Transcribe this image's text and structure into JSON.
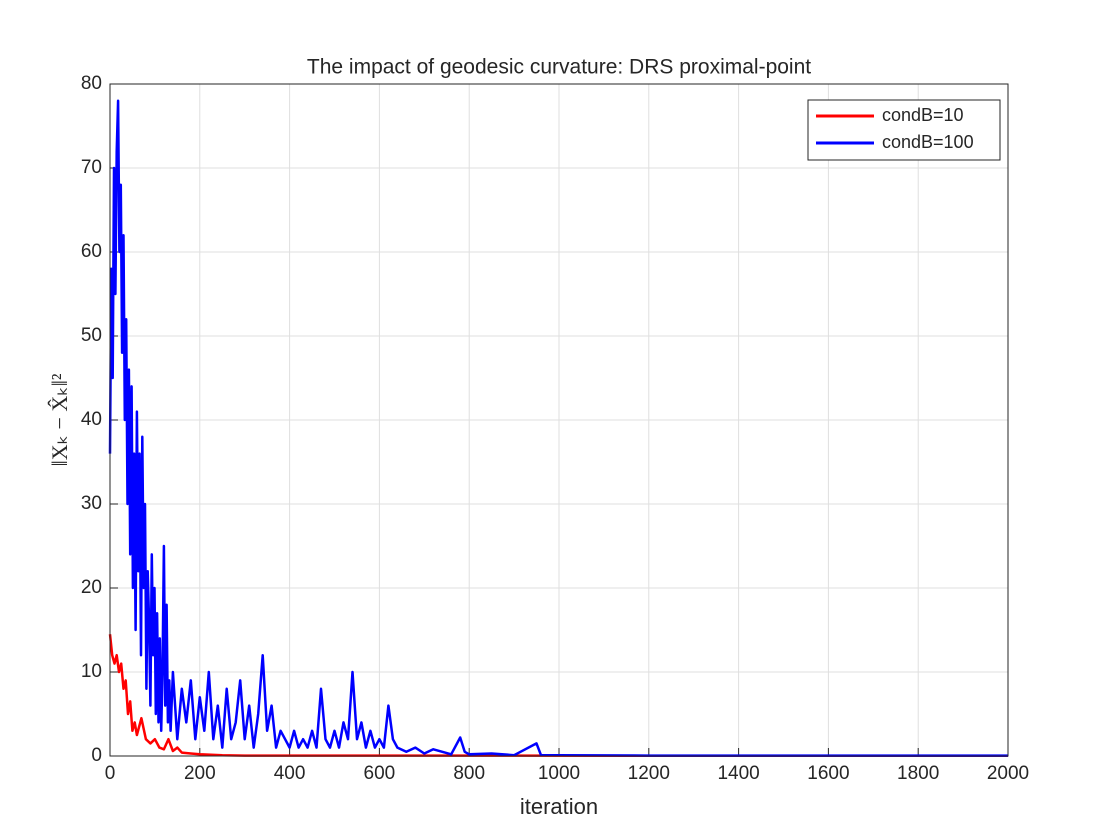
{
  "chart_data": {
    "type": "line",
    "title": "The impact of geodesic curvature: DRS proximal-point",
    "x_label": "iteration",
    "y_label": "‖Xₖ − X̂ₖ‖²",
    "xlim": [
      0,
      2000
    ],
    "xticks": [
      0,
      200,
      400,
      600,
      800,
      1000,
      1200,
      1400,
      1600,
      1800,
      2000
    ],
    "ylim": [
      0,
      80
    ],
    "yticks": [
      0,
      10,
      20,
      30,
      40,
      50,
      60,
      70,
      80
    ],
    "grid": true,
    "legend_position": "top-right",
    "series": [
      {
        "name": "condB=10",
        "color": "#ff0000",
        "x": [
          0,
          5,
          10,
          15,
          20,
          25,
          30,
          35,
          40,
          45,
          50,
          55,
          60,
          70,
          80,
          90,
          100,
          110,
          120,
          130,
          140,
          150,
          160,
          180,
          200,
          250,
          300,
          2000
        ],
        "values": [
          14.5,
          12,
          11,
          12,
          10,
          11,
          8,
          9,
          5,
          6.5,
          3,
          4,
          2.5,
          4.5,
          2,
          1.5,
          2,
          1,
          0.8,
          2,
          0.6,
          1,
          0.4,
          0.3,
          0.2,
          0.1,
          0.05,
          0.02
        ]
      },
      {
        "name": "condB=100",
        "color": "#0000ff",
        "x": [
          0,
          3,
          6,
          9,
          12,
          15,
          18,
          21,
          24,
          27,
          30,
          33,
          36,
          39,
          42,
          45,
          48,
          51,
          54,
          57,
          60,
          63,
          66,
          69,
          72,
          75,
          78,
          81,
          84,
          87,
          90,
          93,
          96,
          99,
          102,
          105,
          108,
          111,
          114,
          117,
          120,
          123,
          126,
          129,
          132,
          135,
          140,
          145,
          150,
          160,
          170,
          180,
          190,
          200,
          210,
          220,
          230,
          240,
          250,
          260,
          270,
          280,
          290,
          300,
          310,
          320,
          330,
          340,
          350,
          360,
          370,
          380,
          390,
          400,
          410,
          420,
          430,
          440,
          450,
          460,
          470,
          480,
          490,
          500,
          510,
          520,
          530,
          540,
          550,
          560,
          570,
          580,
          590,
          600,
          610,
          620,
          630,
          640,
          660,
          680,
          700,
          720,
          740,
          760,
          780,
          790,
          800,
          850,
          900,
          950,
          960,
          1000,
          1200,
          1500,
          2000
        ],
        "values": [
          36,
          58,
          45,
          70,
          55,
          72,
          78,
          60,
          68,
          48,
          62,
          40,
          52,
          30,
          46,
          24,
          44,
          20,
          36,
          15,
          41,
          22,
          36,
          12,
          38,
          20,
          30,
          8,
          22,
          16,
          6,
          24,
          12,
          20,
          5,
          17,
          4,
          14,
          3,
          10,
          25,
          6,
          18,
          4,
          9,
          3,
          10,
          6,
          2,
          8,
          4,
          9,
          2,
          7,
          3,
          10,
          2,
          6,
          1,
          8,
          2,
          4,
          9,
          2,
          6,
          1,
          5,
          12,
          3,
          6,
          1,
          3,
          2,
          1,
          3,
          1,
          2,
          1,
          3,
          1,
          8,
          2,
          1,
          3,
          1,
          4,
          2,
          10,
          2,
          4,
          1,
          3,
          1,
          2,
          1,
          6,
          2,
          1,
          0.5,
          1,
          0.3,
          0.8,
          0.5,
          0.2,
          2.2,
          0.5,
          0.2,
          0.3,
          0.1,
          1.5,
          0.1,
          0.1,
          0.05,
          0.05,
          0.05
        ]
      }
    ]
  }
}
